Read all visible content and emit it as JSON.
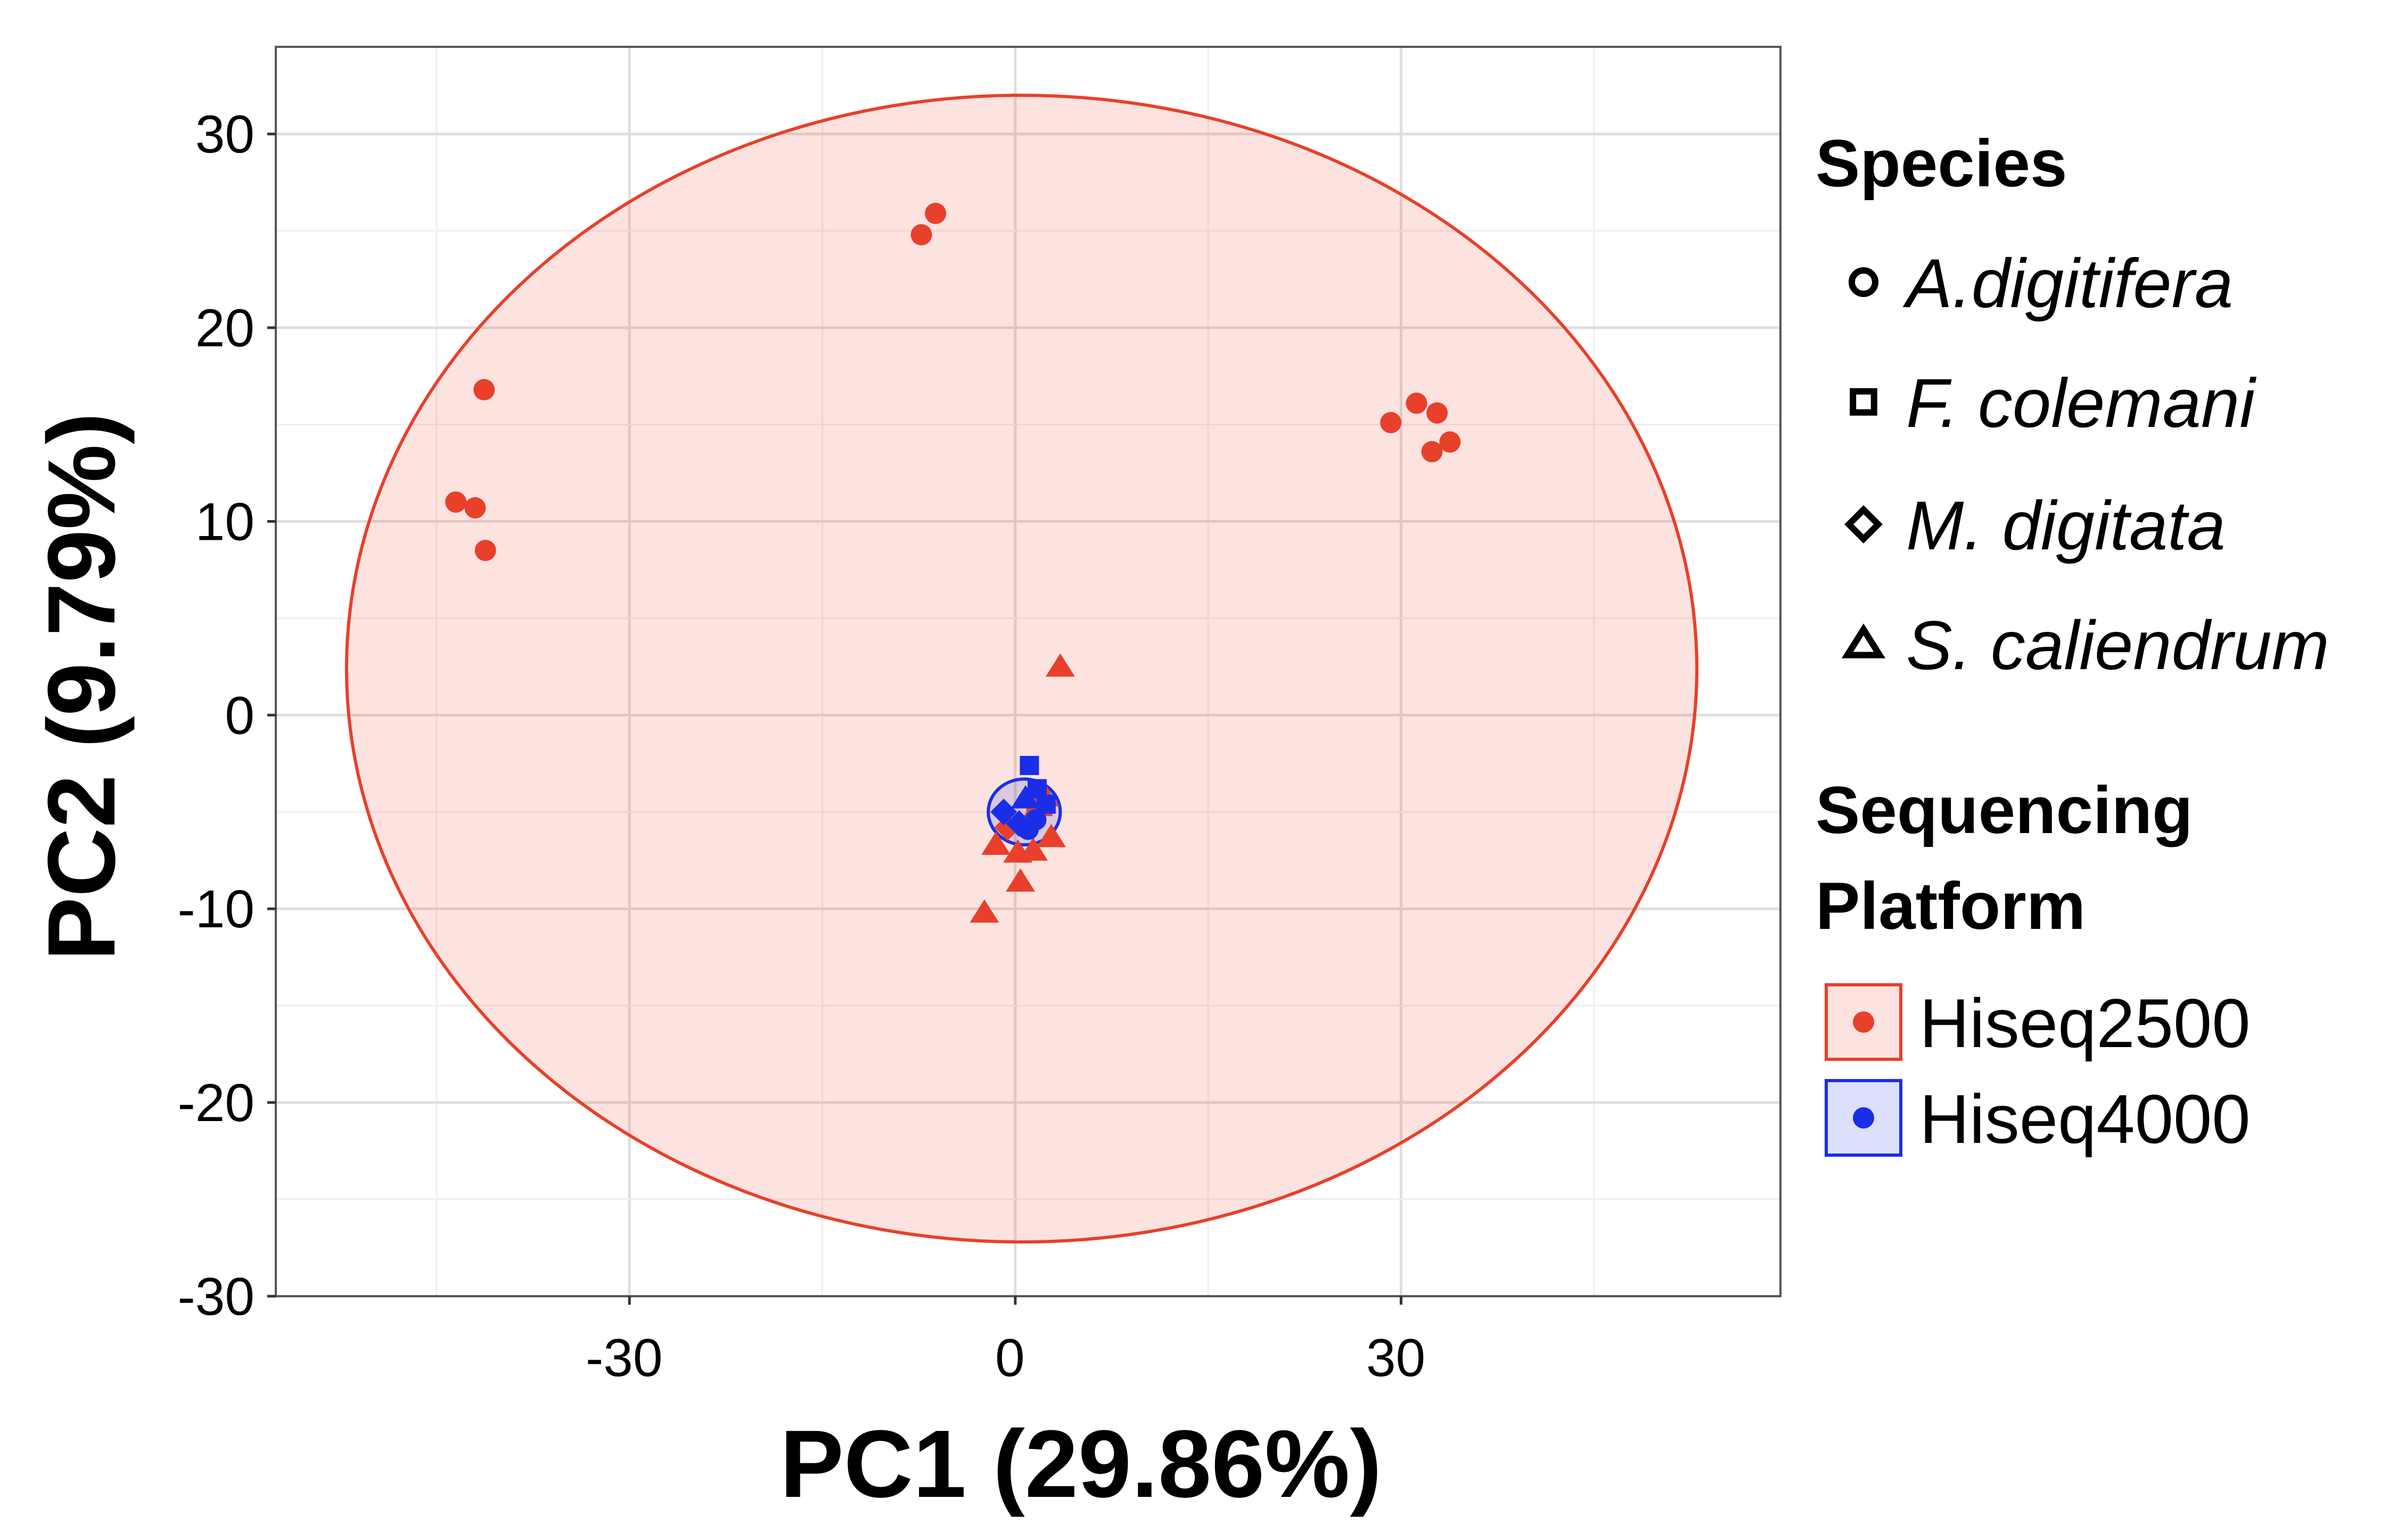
{
  "chart_data": {
    "type": "scatter",
    "title": "",
    "xlabel": "PC1 (29.86%)",
    "ylabel": "PC2 (9.79%)",
    "xlim": [
      -57.5,
      59.5
    ],
    "ylim": [
      -30,
      34.5
    ],
    "xticks": [
      -30,
      0,
      30
    ],
    "yticks": [
      30,
      20,
      10,
      0,
      -10,
      -20,
      -30
    ],
    "grid": true,
    "legend_position": "right",
    "legend": {
      "species_title": "Species",
      "species": [
        {
          "label": "A.digitifera",
          "marker": "circle"
        },
        {
          "label": "F. colemani",
          "marker": "square"
        },
        {
          "label": "M. digitata",
          "marker": "diamond"
        },
        {
          "label": "S. caliendrum",
          "marker": "triangle"
        }
      ],
      "platform_title_line1": "Sequencing",
      "platform_title_line2": "Platform",
      "platforms": [
        {
          "label": "Hiseq2500",
          "color": "#e8402a"
        },
        {
          "label": "Hiseq4000",
          "color": "#1a2ee8"
        }
      ]
    },
    "series": [
      {
        "name": "Hiseq2500",
        "color": "#e8402a",
        "ellipse": {
          "cx": 0.5,
          "cy": 2.4,
          "rx": 52.5,
          "ry": 29.6
        },
        "points": [
          {
            "x": -7.3,
            "y": 24.8,
            "species": "A.digitifera"
          },
          {
            "x": -6.2,
            "y": 25.9,
            "species": "A.digitifera"
          },
          {
            "x": -41.3,
            "y": 16.8,
            "species": "A.digitifera"
          },
          {
            "x": -43.5,
            "y": 11.0,
            "species": "A.digitifera"
          },
          {
            "x": -42.0,
            "y": 10.7,
            "species": "A.digitifera"
          },
          {
            "x": -41.2,
            "y": 8.5,
            "species": "A.digitifera"
          },
          {
            "x": 29.2,
            "y": 15.1,
            "species": "A.digitifera"
          },
          {
            "x": 31.2,
            "y": 16.1,
            "species": "A.digitifera"
          },
          {
            "x": 32.8,
            "y": 15.6,
            "species": "A.digitifera"
          },
          {
            "x": 32.4,
            "y": 13.6,
            "species": "A.digitifera"
          },
          {
            "x": 33.8,
            "y": 14.1,
            "species": "A.digitifera"
          },
          {
            "x": 3.5,
            "y": 2.5,
            "species": "S. caliendrum"
          },
          {
            "x": -2.4,
            "y": -10.2,
            "species": "S. caliendrum"
          },
          {
            "x": 0.4,
            "y": -8.6,
            "species": "S. caliendrum"
          },
          {
            "x": -1.5,
            "y": -6.7,
            "species": "S. caliendrum"
          },
          {
            "x": 0.2,
            "y": -7.1,
            "species": "S. caliendrum"
          },
          {
            "x": 1.4,
            "y": -7.0,
            "species": "S. caliendrum"
          },
          {
            "x": 2.8,
            "y": -6.3,
            "species": "S. caliendrum"
          },
          {
            "x": 1.8,
            "y": -4.7,
            "species": "S. caliendrum"
          },
          {
            "x": 2.3,
            "y": -4.2,
            "species": "S. caliendrum"
          },
          {
            "x": -0.6,
            "y": -5.8,
            "species": "M. digitata"
          },
          {
            "x": 1.6,
            "y": -5.1,
            "species": "F. colemani"
          }
        ]
      },
      {
        "name": "Hiseq4000",
        "color": "#1a2ee8",
        "ellipse": {
          "cx": 0.7,
          "cy": -5.0,
          "rx": 2.8,
          "ry": 1.7
        },
        "points": [
          {
            "x": 1.1,
            "y": -2.6,
            "species": "F. colemani"
          },
          {
            "x": 1.7,
            "y": -3.8,
            "species": "F. colemani"
          },
          {
            "x": 2.4,
            "y": -4.6,
            "species": "F. colemani"
          },
          {
            "x": -0.9,
            "y": -5.0,
            "species": "M. digitata"
          },
          {
            "x": 0.3,
            "y": -5.6,
            "species": "M. digitata"
          },
          {
            "x": 1.0,
            "y": -5.9,
            "species": "A.digitifera"
          },
          {
            "x": 1.6,
            "y": -5.4,
            "species": "A.digitifera"
          },
          {
            "x": 0.8,
            "y": -4.3,
            "species": "S. caliendrum"
          }
        ]
      }
    ]
  }
}
